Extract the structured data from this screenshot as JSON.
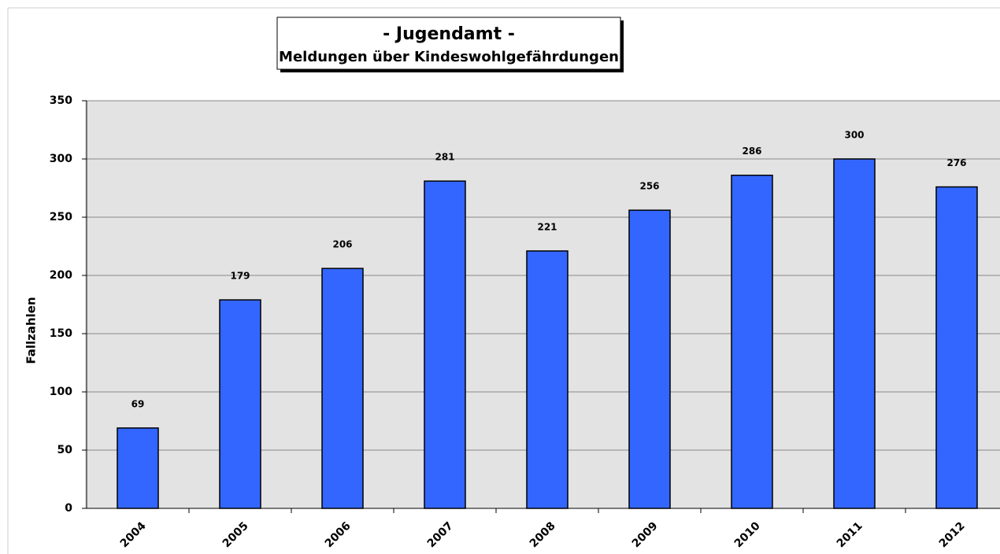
{
  "chart_data": {
    "type": "bar",
    "title": "- Jugendamt -",
    "subtitle": "Meldungen über Kindeswohlgefährdungen",
    "y_label": "Fallzahlen",
    "categories": [
      "2004",
      "2005",
      "2006",
      "2007",
      "2008",
      "2009",
      "2010",
      "2011",
      "2012"
    ],
    "values": [
      69,
      179,
      206,
      281,
      221,
      256,
      286,
      300,
      276
    ],
    "color": "#3366ff",
    "ylim": [
      0,
      350
    ],
    "yticks": [
      0,
      50,
      100,
      150,
      200,
      250,
      300,
      350
    ],
    "grid": true
  }
}
